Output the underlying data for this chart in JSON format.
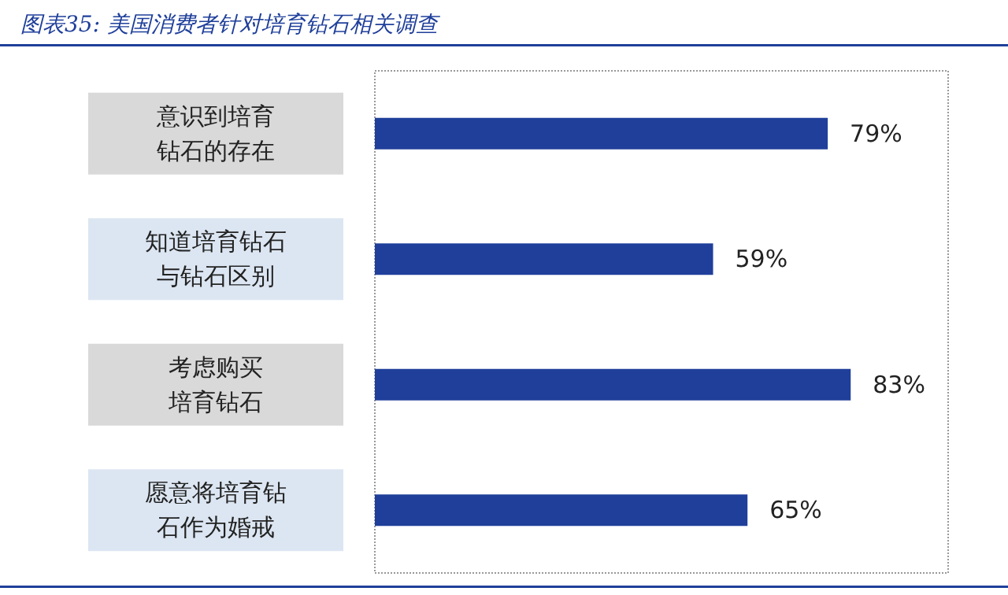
{
  "chart_data": {
    "type": "bar",
    "orientation": "horizontal",
    "title": "图表35: 美国消费者针对培育钻石相关调查",
    "categories": [
      "意识到培育钻石的存在",
      "知道培育钻石与钻石区别",
      "考虑购买培育钻石",
      "愿意将培育钻石作为婚戒"
    ],
    "values": [
      79,
      59,
      83,
      65
    ],
    "value_labels": [
      "79%",
      "59%",
      "83%",
      "65%"
    ],
    "color": "#1f3f9a",
    "tick_labels": false
  }
}
